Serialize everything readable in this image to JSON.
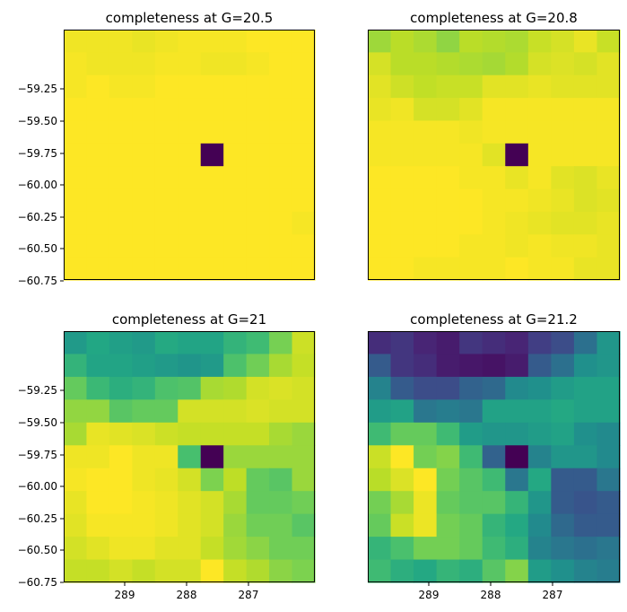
{
  "chart_data": [
    {
      "type": "heatmap",
      "title": "completeness at G=20.5",
      "x_tick_labels": [],
      "y_tick_labels": [
        "−59.25",
        "−59.50",
        "−59.75",
        "−60.00",
        "−60.25",
        "−60.50",
        "−60.75"
      ],
      "values": [
        [
          0.95,
          0.95,
          0.95,
          0.94,
          0.95,
          0.96,
          0.96,
          0.96,
          0.97,
          0.97,
          0.97
        ],
        [
          0.96,
          0.95,
          0.95,
          0.95,
          0.96,
          0.96,
          0.95,
          0.95,
          0.96,
          0.97,
          0.97
        ],
        [
          0.96,
          0.97,
          0.96,
          0.96,
          0.97,
          0.97,
          0.97,
          0.97,
          0.97,
          0.97,
          0.97
        ],
        [
          0.97,
          0.97,
          0.97,
          0.97,
          0.97,
          0.97,
          0.97,
          0.97,
          0.97,
          0.97,
          0.97
        ],
        [
          0.97,
          0.97,
          0.97,
          0.97,
          0.97,
          0.97,
          0.97,
          0.97,
          0.97,
          0.97,
          0.97
        ],
        [
          0.97,
          0.97,
          0.97,
          0.97,
          0.97,
          0.97,
          0.0,
          0.97,
          0.97,
          0.97,
          0.97
        ],
        [
          0.97,
          0.97,
          0.97,
          0.97,
          0.97,
          0.97,
          0.97,
          0.97,
          0.97,
          0.97,
          0.97
        ],
        [
          0.97,
          0.97,
          0.97,
          0.97,
          0.97,
          0.97,
          0.97,
          0.97,
          0.97,
          0.97,
          0.97
        ],
        [
          0.97,
          0.97,
          0.97,
          0.97,
          0.97,
          0.97,
          0.97,
          0.97,
          0.97,
          0.97,
          0.96
        ],
        [
          0.97,
          0.97,
          0.97,
          0.97,
          0.97,
          0.97,
          0.97,
          0.97,
          0.97,
          0.97,
          0.97
        ],
        [
          0.97,
          0.97,
          0.97,
          0.97,
          0.97,
          0.97,
          0.97,
          0.97,
          0.97,
          0.97,
          0.97
        ]
      ]
    },
    {
      "type": "heatmap",
      "title": "completeness at G=20.8",
      "x_tick_labels": [],
      "y_tick_labels": [],
      "values": [
        [
          0.82,
          0.86,
          0.84,
          0.8,
          0.86,
          0.85,
          0.84,
          0.88,
          0.9,
          0.93,
          0.88
        ],
        [
          0.9,
          0.86,
          0.86,
          0.85,
          0.84,
          0.83,
          0.85,
          0.9,
          0.91,
          0.9,
          0.92
        ],
        [
          0.92,
          0.89,
          0.87,
          0.88,
          0.88,
          0.92,
          0.92,
          0.93,
          0.92,
          0.92,
          0.92
        ],
        [
          0.93,
          0.94,
          0.9,
          0.9,
          0.92,
          0.95,
          0.95,
          0.95,
          0.95,
          0.95,
          0.95
        ],
        [
          0.95,
          0.95,
          0.95,
          0.95,
          0.94,
          0.95,
          0.95,
          0.95,
          0.95,
          0.95,
          0.95
        ],
        [
          0.95,
          0.95,
          0.95,
          0.95,
          0.95,
          0.92,
          0.0,
          0.95,
          0.95,
          0.95,
          0.95
        ],
        [
          0.96,
          0.96,
          0.96,
          0.96,
          0.95,
          0.95,
          0.93,
          0.95,
          0.92,
          0.91,
          0.93
        ],
        [
          0.96,
          0.96,
          0.96,
          0.96,
          0.96,
          0.95,
          0.95,
          0.94,
          0.93,
          0.91,
          0.92
        ],
        [
          0.96,
          0.96,
          0.96,
          0.96,
          0.96,
          0.95,
          0.94,
          0.93,
          0.92,
          0.92,
          0.93
        ],
        [
          0.96,
          0.96,
          0.96,
          0.96,
          0.95,
          0.95,
          0.94,
          0.95,
          0.94,
          0.94,
          0.93
        ],
        [
          0.96,
          0.96,
          0.95,
          0.95,
          0.95,
          0.95,
          0.96,
          0.95,
          0.95,
          0.93,
          0.93
        ]
      ]
    },
    {
      "type": "heatmap",
      "title": "completeness at G=21",
      "x_tick_labels": [
        "289",
        "288",
        "287"
      ],
      "y_tick_labels": [
        "−59.25",
        "−59.50",
        "−59.75",
        "−60.00",
        "−60.25",
        "−60.50",
        "−60.75"
      ],
      "values": [
        [
          0.5,
          0.55,
          0.52,
          0.5,
          0.56,
          0.54,
          0.54,
          0.6,
          0.63,
          0.73,
          0.85
        ],
        [
          0.6,
          0.54,
          0.54,
          0.52,
          0.5,
          0.48,
          0.5,
          0.66,
          0.72,
          0.8,
          0.84
        ],
        [
          0.7,
          0.62,
          0.58,
          0.6,
          0.66,
          0.67,
          0.8,
          0.81,
          0.86,
          0.87,
          0.86
        ],
        [
          0.77,
          0.77,
          0.68,
          0.7,
          0.7,
          0.86,
          0.86,
          0.86,
          0.87,
          0.86,
          0.86
        ],
        [
          0.8,
          0.89,
          0.88,
          0.87,
          0.85,
          0.84,
          0.84,
          0.84,
          0.84,
          0.8,
          0.78
        ],
        [
          0.9,
          0.9,
          0.92,
          0.9,
          0.9,
          0.65,
          0.0,
          0.78,
          0.78,
          0.78,
          0.78
        ],
        [
          0.91,
          0.92,
          0.92,
          0.9,
          0.89,
          0.86,
          0.74,
          0.83,
          0.7,
          0.68,
          0.78
        ],
        [
          0.89,
          0.92,
          0.92,
          0.91,
          0.9,
          0.88,
          0.86,
          0.8,
          0.7,
          0.7,
          0.72
        ],
        [
          0.88,
          0.91,
          0.91,
          0.91,
          0.9,
          0.88,
          0.86,
          0.78,
          0.72,
          0.72,
          0.68
        ],
        [
          0.86,
          0.88,
          0.9,
          0.9,
          0.88,
          0.88,
          0.84,
          0.79,
          0.76,
          0.72,
          0.72
        ],
        [
          0.84,
          0.84,
          0.86,
          0.84,
          0.86,
          0.86,
          0.92,
          0.84,
          0.81,
          0.76,
          0.74
        ]
      ]
    },
    {
      "type": "heatmap",
      "title": "completeness at G=21.2",
      "x_tick_labels": [
        "289",
        "288",
        "287"
      ],
      "y_tick_labels": [],
      "values": [
        [
          0.1,
          0.12,
          0.08,
          0.06,
          0.12,
          0.1,
          0.08,
          0.14,
          0.18,
          0.28,
          0.4
        ],
        [
          0.22,
          0.12,
          0.1,
          0.06,
          0.05,
          0.04,
          0.06,
          0.22,
          0.28,
          0.38,
          0.4
        ],
        [
          0.34,
          0.22,
          0.18,
          0.18,
          0.24,
          0.26,
          0.36,
          0.38,
          0.42,
          0.44,
          0.44
        ],
        [
          0.42,
          0.44,
          0.3,
          0.32,
          0.3,
          0.44,
          0.44,
          0.44,
          0.46,
          0.44,
          0.44
        ],
        [
          0.52,
          0.58,
          0.58,
          0.52,
          0.42,
          0.4,
          0.4,
          0.42,
          0.44,
          0.38,
          0.36
        ],
        [
          0.7,
          0.76,
          0.6,
          0.62,
          0.52,
          0.24,
          0.0,
          0.34,
          0.4,
          0.4,
          0.36
        ],
        [
          0.68,
          0.72,
          0.76,
          0.6,
          0.56,
          0.52,
          0.3,
          0.46,
          0.22,
          0.22,
          0.3
        ],
        [
          0.6,
          0.66,
          0.74,
          0.58,
          0.56,
          0.56,
          0.5,
          0.4,
          0.22,
          0.2,
          0.22
        ],
        [
          0.58,
          0.7,
          0.74,
          0.6,
          0.58,
          0.5,
          0.46,
          0.36,
          0.26,
          0.22,
          0.22
        ],
        [
          0.5,
          0.54,
          0.6,
          0.6,
          0.58,
          0.52,
          0.48,
          0.34,
          0.3,
          0.28,
          0.3
        ],
        [
          0.52,
          0.48,
          0.46,
          0.5,
          0.48,
          0.56,
          0.62,
          0.42,
          0.38,
          0.34,
          0.32
        ]
      ]
    }
  ]
}
